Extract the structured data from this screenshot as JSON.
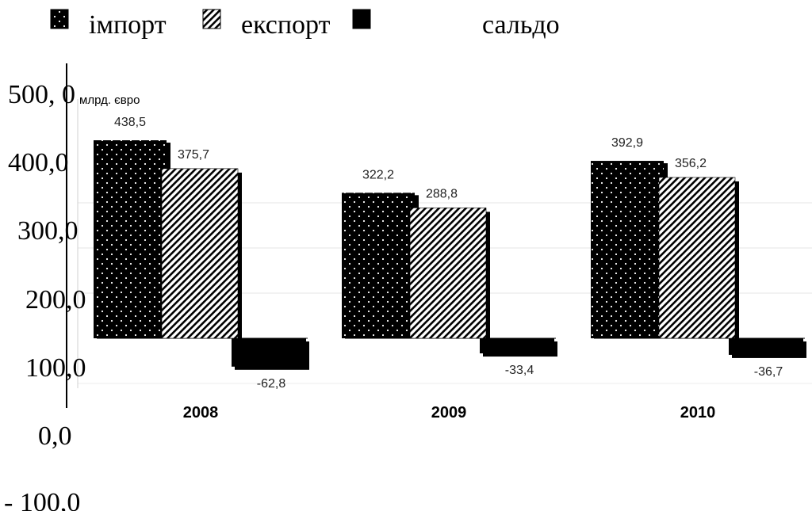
{
  "chart_data": {
    "type": "bar",
    "unit_label": "млрд. євро",
    "categories": [
      "2008",
      "2009",
      "2010"
    ],
    "series": [
      {
        "name": "імпорт",
        "values": [
          438.5,
          322.2,
          392.9
        ],
        "labels": [
          "438,5",
          "322,2",
          "392,9"
        ],
        "pattern": "dots",
        "color": "#000000"
      },
      {
        "name": "експорт",
        "values": [
          375.7,
          288.8,
          356.2
        ],
        "labels": [
          "375,7",
          "288,8",
          "356,2"
        ],
        "pattern": "diagonal-hatch",
        "color": "#000000"
      },
      {
        "name": "сальдо",
        "values": [
          -62.8,
          -33.4,
          -36.7
        ],
        "labels": [
          "-62,8",
          "-33,4",
          "-36,7"
        ],
        "pattern": "solid",
        "color": "#000000"
      }
    ],
    "y_ticks": [
      {
        "value": 500,
        "label": "500, 0"
      },
      {
        "value": 400,
        "label": "400,0"
      },
      {
        "value": 300,
        "label": "300,0"
      },
      {
        "value": 200,
        "label": "200,0"
      },
      {
        "value": 100,
        "label": "100,0"
      },
      {
        "value": 0,
        "label": "0,0"
      },
      {
        "value": -100,
        "label": "- 100,0"
      }
    ],
    "ylim": [
      -100,
      500
    ],
    "grid": true,
    "legend_position": "top"
  }
}
